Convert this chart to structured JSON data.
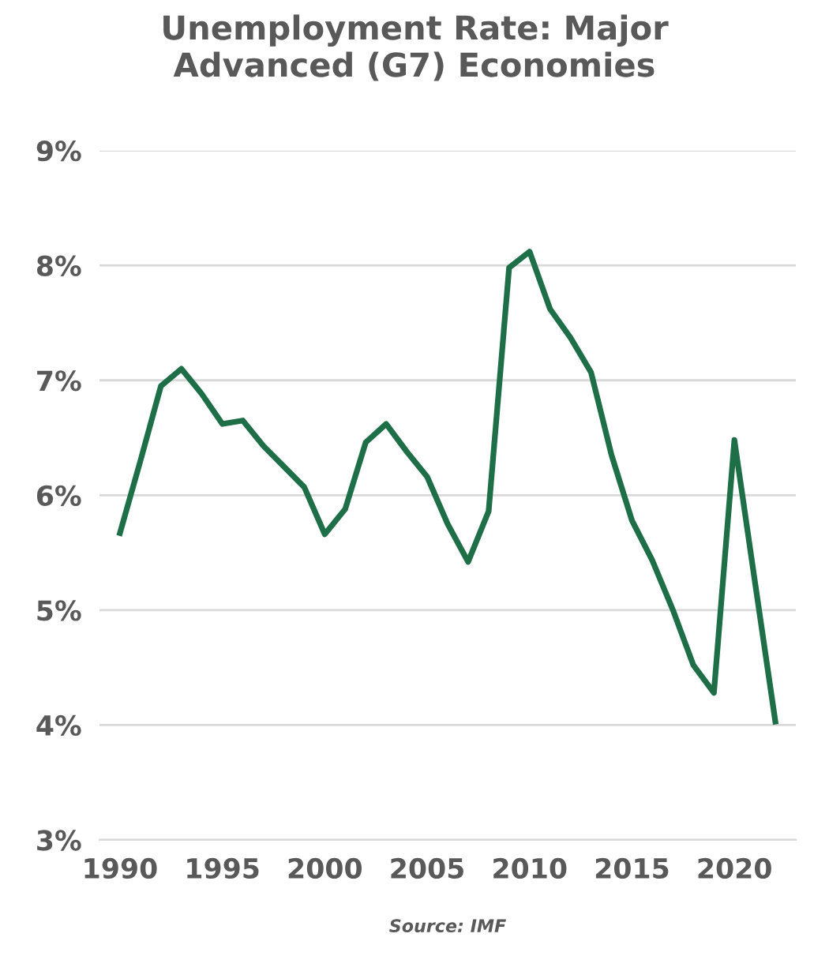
{
  "chart_data": {
    "type": "line",
    "title": "Unemployment Rate: Major\nAdvanced (G7) Economies",
    "x": [
      1990,
      1991,
      1992,
      1993,
      1994,
      1995,
      1996,
      1997,
      1998,
      1999,
      2000,
      2001,
      2002,
      2003,
      2004,
      2005,
      2006,
      2007,
      2008,
      2009,
      2010,
      2011,
      2012,
      2013,
      2014,
      2015,
      2016,
      2017,
      2018,
      2019,
      2020,
      2021,
      2022
    ],
    "series": [
      {
        "color": "#1e6e48",
        "values": [
          5.67,
          6.3,
          6.95,
          7.1,
          6.88,
          6.62,
          6.65,
          6.43,
          6.25,
          6.07,
          5.66,
          5.88,
          6.46,
          6.62,
          6.38,
          6.16,
          5.75,
          5.42,
          5.86,
          7.98,
          8.12,
          7.62,
          7.37,
          7.07,
          6.35,
          5.78,
          5.43,
          5.0,
          4.52,
          4.28,
          6.48,
          5.25,
          4.03
        ]
      }
    ],
    "xlim": [
      1989,
      2023
    ],
    "xticks": [
      1990,
      1995,
      2000,
      2005,
      2010,
      2015,
      2020
    ],
    "ylim": [
      3,
      9
    ],
    "yticks": [
      {
        "value": 3,
        "label": "3%"
      },
      {
        "value": 4,
        "label": "4%"
      },
      {
        "value": 5,
        "label": "5%"
      },
      {
        "value": 6,
        "label": "6%"
      },
      {
        "value": 7,
        "label": "7%"
      },
      {
        "value": 8,
        "label": "8%"
      },
      {
        "value": 9,
        "label": "9%"
      }
    ],
    "grid": "y",
    "line_style": "solid",
    "marker": "none",
    "legend": false,
    "annotations": [
      "Source: IMF"
    ]
  }
}
